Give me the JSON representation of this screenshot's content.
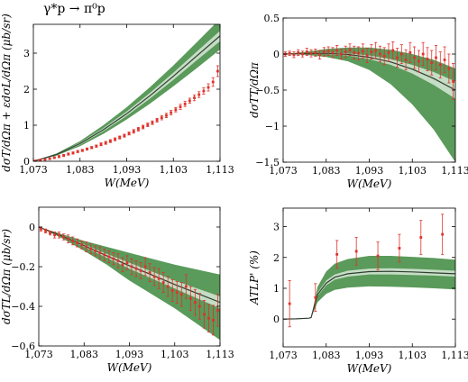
{
  "title": "γ*p → π⁰p",
  "chart_data": [
    {
      "type": "line",
      "xlabel": "W(MeV)",
      "ylabel": "dσT/dΩπ + εdσL/dΩπ (μb/sr)",
      "xlim": [
        1073,
        1113
      ],
      "ylim": [
        0,
        3.8
      ],
      "xticks": [
        1073,
        1083,
        1093,
        1103,
        1113
      ],
      "xtick_labels": [
        "1,073",
        "1,083",
        "1,093",
        "1,103",
        "1,113"
      ],
      "yticks": [
        0,
        1,
        2,
        3
      ],
      "ytick_labels": [
        "0",
        "1",
        "2",
        "3"
      ],
      "band_outer": {
        "x": [
          1073,
          1078,
          1083,
          1088,
          1093,
          1098,
          1103,
          1108,
          1113
        ],
        "lower": [
          0,
          0.16,
          0.42,
          0.76,
          1.16,
          1.6,
          2.08,
          2.58,
          3.1
        ],
        "upper": [
          0,
          0.22,
          0.56,
          1.0,
          1.5,
          2.06,
          2.66,
          3.3,
          3.95
        ]
      },
      "band_inner": {
        "x": [
          1073,
          1078,
          1083,
          1088,
          1093,
          1098,
          1103,
          1108,
          1113
        ],
        "lower": [
          0,
          0.18,
          0.46,
          0.83,
          1.26,
          1.74,
          2.26,
          2.8,
          3.33
        ],
        "upper": [
          0,
          0.2,
          0.52,
          0.92,
          1.38,
          1.9,
          2.46,
          3.04,
          3.62
        ]
      },
      "curve": {
        "x": [
          1073,
          1078,
          1083,
          1088,
          1093,
          1098,
          1103,
          1108,
          1113
        ],
        "y": [
          0,
          0.19,
          0.49,
          0.875,
          1.32,
          1.82,
          2.36,
          2.92,
          3.48
        ]
      },
      "points": {
        "x": [
          1073.5,
          1074.5,
          1075.5,
          1076.5,
          1077.5,
          1078.5,
          1079.5,
          1080.5,
          1081.5,
          1082.5,
          1083.5,
          1084.5,
          1085.5,
          1086.5,
          1087.5,
          1088.5,
          1089.5,
          1090.5,
          1091.5,
          1092.5,
          1093.5,
          1094.5,
          1095.5,
          1096.5,
          1097.5,
          1098.5,
          1099.5,
          1100.5,
          1101.5,
          1102.5,
          1103.5,
          1104.5,
          1105.5,
          1106.5,
          1107.5,
          1108.5,
          1109.5,
          1110.5,
          1111.5,
          1112.5
        ],
        "y": [
          0.01,
          0.03,
          0.05,
          0.07,
          0.1,
          0.13,
          0.16,
          0.2,
          0.23,
          0.27,
          0.3,
          0.34,
          0.38,
          0.42,
          0.47,
          0.51,
          0.56,
          0.61,
          0.66,
          0.71,
          0.77,
          0.83,
          0.89,
          0.95,
          1.01,
          1.07,
          1.14,
          1.21,
          1.27,
          1.35,
          1.43,
          1.51,
          1.59,
          1.68,
          1.76,
          1.85,
          1.95,
          2.05,
          2.2,
          2.5
        ],
        "err": [
          0.02,
          0.02,
          0.02,
          0.02,
          0.02,
          0.03,
          0.03,
          0.03,
          0.03,
          0.03,
          0.03,
          0.03,
          0.03,
          0.03,
          0.04,
          0.04,
          0.04,
          0.04,
          0.04,
          0.04,
          0.04,
          0.05,
          0.05,
          0.05,
          0.05,
          0.05,
          0.05,
          0.06,
          0.06,
          0.06,
          0.06,
          0.07,
          0.07,
          0.07,
          0.08,
          0.08,
          0.09,
          0.1,
          0.12,
          0.15
        ]
      }
    },
    {
      "type": "line",
      "xlabel": "W(MeV)",
      "ylabel": "dσTT/dΩπ",
      "xlim": [
        1073,
        1113
      ],
      "ylim": [
        -1.5,
        0.5
      ],
      "xticks": [
        1073,
        1083,
        1093,
        1103,
        1113
      ],
      "xtick_labels": [
        "1,073",
        "1,083",
        "1,093",
        "1,103",
        "1,113"
      ],
      "yticks": [
        -1.5,
        -1,
        -0.5,
        0,
        0.5
      ],
      "ytick_labels": [
        "−1.5",
        "−1",
        "−0.5",
        "0",
        "0.5"
      ],
      "band_outer": {
        "x": [
          1073,
          1078,
          1083,
          1088,
          1093,
          1098,
          1103,
          1108,
          1113
        ],
        "lower": [
          0,
          -0.01,
          -0.04,
          -0.1,
          -0.22,
          -0.42,
          -0.7,
          -1.05,
          -1.5
        ],
        "upper": [
          0,
          0.03,
          0.07,
          0.09,
          0.09,
          0.06,
          0.0,
          -0.08,
          -0.2
        ]
      },
      "band_inner": {
        "x": [
          1073,
          1078,
          1083,
          1088,
          1093,
          1098,
          1103,
          1108,
          1113
        ],
        "lower": [
          0,
          0.0,
          0.0,
          -0.02,
          -0.07,
          -0.15,
          -0.27,
          -0.43,
          -0.62
        ],
        "upper": [
          0,
          0.01,
          0.02,
          0.01,
          -0.02,
          -0.07,
          -0.15,
          -0.25,
          -0.38
        ]
      },
      "curve": {
        "x": [
          1073,
          1078,
          1083,
          1088,
          1093,
          1098,
          1103,
          1108,
          1113
        ],
        "y": [
          0,
          0.005,
          0.01,
          -0.005,
          -0.045,
          -0.11,
          -0.21,
          -0.34,
          -0.5
        ]
      },
      "points": {
        "x": [
          1073.5,
          1074.5,
          1075.5,
          1076.5,
          1077.5,
          1078.5,
          1079.5,
          1080.5,
          1081.5,
          1082.5,
          1083.5,
          1084.5,
          1085.5,
          1086.5,
          1087.5,
          1088.5,
          1089.5,
          1090.5,
          1091.5,
          1092.5,
          1093.5,
          1094.5,
          1095.5,
          1096.5,
          1097.5,
          1098.5,
          1099.5,
          1100.5,
          1101.5,
          1102.5,
          1103.5,
          1104.5,
          1105.5,
          1106.5,
          1107.5,
          1108.5,
          1109.5,
          1110.5,
          1111.5,
          1112.5
        ],
        "y": [
          0.0,
          0.01,
          -0.01,
          0.02,
          0.0,
          0.03,
          0.01,
          0.02,
          -0.01,
          0.03,
          0.04,
          0.02,
          0.05,
          0.0,
          0.03,
          0.06,
          0.02,
          0.01,
          0.04,
          -0.02,
          0.03,
          0.05,
          0.0,
          -0.03,
          0.02,
          0.05,
          -0.05,
          0.0,
          -0.08,
          0.02,
          -0.05,
          -0.1,
          0.0,
          -0.07,
          -0.12,
          -0.05,
          -0.15,
          -0.08,
          -0.2,
          -0.38
        ],
        "err": [
          0.03,
          0.03,
          0.04,
          0.04,
          0.04,
          0.05,
          0.05,
          0.05,
          0.06,
          0.06,
          0.06,
          0.07,
          0.07,
          0.07,
          0.08,
          0.08,
          0.09,
          0.09,
          0.1,
          0.1,
          0.1,
          0.11,
          0.11,
          0.12,
          0.12,
          0.12,
          0.13,
          0.13,
          0.14,
          0.14,
          0.15,
          0.15,
          0.16,
          0.16,
          0.17,
          0.17,
          0.18,
          0.18,
          0.2,
          0.25
        ]
      }
    },
    {
      "type": "line",
      "xlabel": "W(MeV)",
      "ylabel": "dσTL/dΩπ (μb/sr)",
      "xlim": [
        1073,
        1113
      ],
      "ylim": [
        -0.6,
        0.1
      ],
      "xticks": [
        1073,
        1083,
        1093,
        1103,
        1113
      ],
      "xtick_labels": [
        "1,073",
        "1,083",
        "1,093",
        "1,103",
        "1,113"
      ],
      "yticks": [
        -0.6,
        -0.4,
        -0.2,
        0
      ],
      "ytick_labels": [
        "−0.6",
        "−0.4",
        "−0.2",
        "0"
      ],
      "band_outer": {
        "x": [
          1073,
          1078,
          1083,
          1088,
          1093,
          1098,
          1103,
          1108,
          1113
        ],
        "lower": [
          0,
          -0.055,
          -0.12,
          -0.19,
          -0.27,
          -0.34,
          -0.41,
          -0.49,
          -0.57
        ],
        "upper": [
          0,
          -0.035,
          -0.07,
          -0.1,
          -0.13,
          -0.16,
          -0.19,
          -0.215,
          -0.24
        ]
      },
      "band_inner": {
        "x": [
          1073,
          1078,
          1083,
          1088,
          1093,
          1098,
          1103,
          1108,
          1113
        ],
        "lower": [
          0,
          -0.047,
          -0.1,
          -0.155,
          -0.21,
          -0.26,
          -0.31,
          -0.36,
          -0.41
        ],
        "upper": [
          0,
          -0.041,
          -0.088,
          -0.135,
          -0.18,
          -0.225,
          -0.27,
          -0.31,
          -0.35
        ]
      },
      "curve": {
        "x": [
          1073,
          1078,
          1083,
          1088,
          1093,
          1098,
          1103,
          1108,
          1113
        ],
        "y": [
          0,
          -0.044,
          -0.094,
          -0.145,
          -0.195,
          -0.242,
          -0.29,
          -0.335,
          -0.38
        ]
      },
      "points": {
        "x": [
          1073.5,
          1074.5,
          1075.5,
          1076.5,
          1077.5,
          1078.5,
          1079.5,
          1080.5,
          1081.5,
          1082.5,
          1083.5,
          1084.5,
          1085.5,
          1086.5,
          1087.5,
          1088.5,
          1089.5,
          1090.5,
          1091.5,
          1092.5,
          1093.5,
          1094.5,
          1095.5,
          1096.5,
          1097.5,
          1098.5,
          1099.5,
          1100.5,
          1101.5,
          1102.5,
          1103.5,
          1104.5,
          1105.5,
          1106.5,
          1107.5,
          1108.5,
          1109.5,
          1110.5,
          1111.5,
          1112.5
        ],
        "y": [
          -0.01,
          -0.02,
          -0.03,
          -0.04,
          -0.04,
          -0.05,
          -0.06,
          -0.07,
          -0.08,
          -0.09,
          -0.1,
          -0.11,
          -0.12,
          -0.13,
          -0.14,
          -0.15,
          -0.16,
          -0.17,
          -0.19,
          -0.18,
          -0.2,
          -0.21,
          -0.22,
          -0.2,
          -0.23,
          -0.25,
          -0.26,
          -0.28,
          -0.3,
          -0.32,
          -0.33,
          -0.34,
          -0.3,
          -0.36,
          -0.38,
          -0.4,
          -0.44,
          -0.46,
          -0.47,
          -0.42
        ],
        "err": [
          0.01,
          0.01,
          0.01,
          0.015,
          0.015,
          0.015,
          0.02,
          0.02,
          0.02,
          0.02,
          0.025,
          0.025,
          0.025,
          0.03,
          0.03,
          0.03,
          0.03,
          0.035,
          0.035,
          0.035,
          0.04,
          0.04,
          0.04,
          0.045,
          0.045,
          0.045,
          0.05,
          0.05,
          0.05,
          0.055,
          0.055,
          0.06,
          0.06,
          0.06,
          0.065,
          0.065,
          0.07,
          0.07,
          0.075,
          0.08
        ]
      }
    },
    {
      "type": "line",
      "xlabel": "W(MeV)",
      "ylabel": "ATLP' (%)",
      "xlim": [
        1073,
        1113
      ],
      "ylim": [
        -0.9,
        3.6
      ],
      "xticks": [
        1073,
        1083,
        1093,
        1103,
        1113
      ],
      "xtick_labels": [
        "1,073",
        "1,083",
        "1,093",
        "1,103",
        "1,113"
      ],
      "yticks": [
        0,
        1,
        2,
        3
      ],
      "ytick_labels": [
        "0",
        "1",
        "2",
        "3"
      ],
      "band_outer": {
        "x": [
          1079.5,
          1081,
          1083,
          1085,
          1088,
          1093,
          1098,
          1103,
          1108,
          1113
        ],
        "lower": [
          0.05,
          0.55,
          0.82,
          0.95,
          1.02,
          1.06,
          1.05,
          1.03,
          1.0,
          0.96
        ],
        "upper": [
          0.05,
          1.05,
          1.55,
          1.8,
          1.95,
          2.05,
          2.05,
          2.02,
          1.98,
          1.93
        ]
      },
      "band_inner": {
        "x": [
          1079.5,
          1081,
          1083,
          1085,
          1088,
          1093,
          1098,
          1103,
          1108,
          1113
        ],
        "lower": [
          0.05,
          0.75,
          1.1,
          1.28,
          1.38,
          1.45,
          1.45,
          1.43,
          1.41,
          1.38
        ],
        "upper": [
          0.05,
          0.86,
          1.25,
          1.45,
          1.57,
          1.64,
          1.65,
          1.63,
          1.6,
          1.57
        ]
      },
      "curve": {
        "x": [
          1073,
          1076,
          1079,
          1079.5,
          1081,
          1083,
          1085,
          1088,
          1093,
          1098,
          1103,
          1108,
          1113
        ],
        "y": [
          0,
          0.01,
          0.03,
          0.05,
          0.8,
          1.17,
          1.36,
          1.47,
          1.54,
          1.55,
          1.53,
          1.5,
          1.47
        ]
      },
      "points": {
        "x": [
          1074.5,
          1080.5,
          1085.5,
          1090.0,
          1095.0,
          1100.0,
          1105.0,
          1110.0
        ],
        "y": [
          0.5,
          0.7,
          2.1,
          2.2,
          2.05,
          2.3,
          2.65,
          2.75
        ],
        "err": [
          0.75,
          0.45,
          0.45,
          0.45,
          0.45,
          0.45,
          0.55,
          0.65
        ]
      }
    }
  ]
}
